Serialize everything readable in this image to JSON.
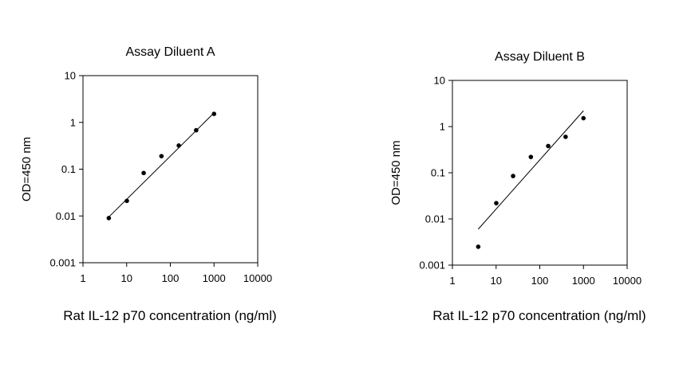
{
  "chart_data": [
    {
      "type": "scatter",
      "title": "Assay Diluent A",
      "xlabel": "Rat IL-12 p70 concentration (ng/ml)",
      "ylabel": "OD=450 nm",
      "xscale": "log",
      "yscale": "log",
      "xlim": [
        1,
        10000
      ],
      "ylim": [
        0.001,
        10
      ],
      "xticks": [
        "1",
        "10",
        "100",
        "1000",
        "10000"
      ],
      "yticks": [
        "0.001",
        "0.01",
        "0.1",
        "1",
        "10"
      ],
      "grid": false,
      "series": [
        {
          "x": [
            3.9,
            10.1,
            24.5,
            62.5,
            156,
            390,
            1000
          ],
          "y": [
            0.009,
            0.021,
            0.083,
            0.19,
            0.32,
            0.68,
            1.52
          ]
        }
      ],
      "fit_line": {
        "x": [
          3.9,
          1000
        ],
        "y": [
          0.0095,
          1.6
        ]
      }
    },
    {
      "type": "scatter",
      "title": "Assay Diluent B",
      "xlabel": "Rat IL-12 p70 concentration (ng/ml)",
      "ylabel": "OD=450 nm",
      "xscale": "log",
      "yscale": "log",
      "xlim": [
        1,
        10000
      ],
      "ylim": [
        0.001,
        10
      ],
      "xticks": [
        "1",
        "10",
        "100",
        "1000",
        "10000"
      ],
      "yticks": [
        "0.001",
        "0.01",
        "0.1",
        "1",
        "10"
      ],
      "grid": false,
      "series": [
        {
          "x": [
            3.9,
            10.1,
            24.5,
            62.5,
            156,
            390,
            1000
          ],
          "y": [
            0.0025,
            0.022,
            0.085,
            0.22,
            0.38,
            0.6,
            1.52
          ]
        }
      ],
      "fit_line": {
        "x": [
          3.9,
          1000
        ],
        "y": [
          0.006,
          2.2
        ]
      }
    }
  ]
}
